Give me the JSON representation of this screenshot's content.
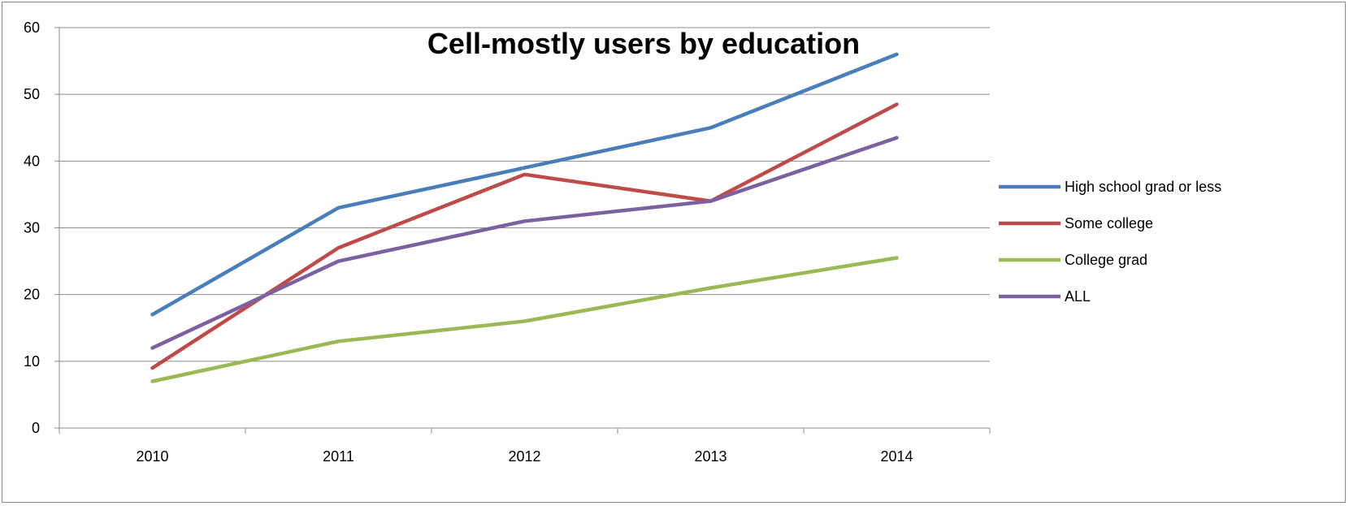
{
  "chart_data": {
    "type": "line",
    "title": "Cell-mostly users by education",
    "xlabel": "",
    "ylabel": "",
    "categories": [
      "2010",
      "2011",
      "2012",
      "2013",
      "2014"
    ],
    "ylim": [
      0,
      60
    ],
    "yticks": [
      "0",
      "10",
      "20",
      "30",
      "40",
      "50",
      "60"
    ],
    "grid": true,
    "legend_position": "right",
    "series": [
      {
        "name": "High school grad or less",
        "color": "#4a7ebb",
        "values": [
          17,
          33,
          39,
          45,
          56
        ]
      },
      {
        "name": "Some college",
        "color": "#be4b48",
        "values": [
          9,
          27,
          38,
          34,
          48.5
        ]
      },
      {
        "name": "College grad",
        "color": "#98b954",
        "values": [
          7,
          13,
          16,
          21,
          25.5
        ]
      },
      {
        "name": "ALL",
        "color": "#7d60a0",
        "values": [
          12,
          25,
          31,
          34,
          43.5
        ]
      }
    ]
  }
}
